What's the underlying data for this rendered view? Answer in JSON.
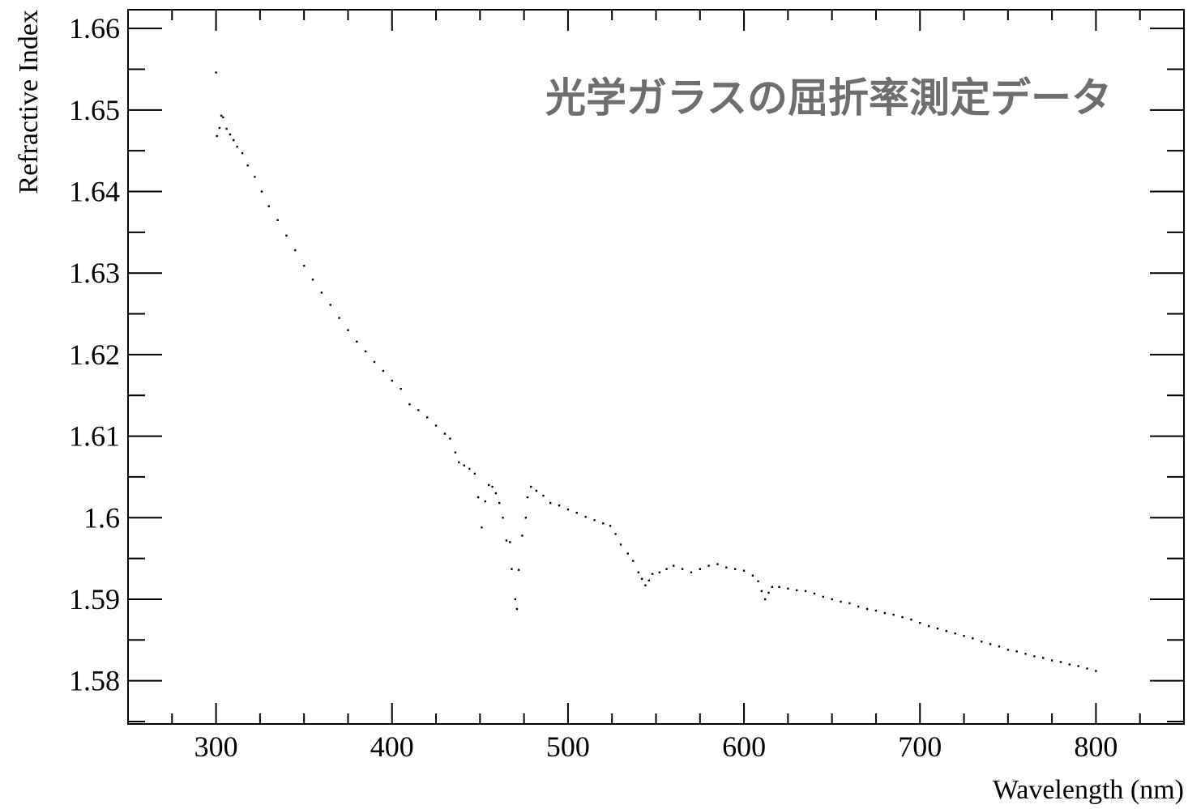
{
  "chart_data": {
    "type": "scatter",
    "title": "光学ガラスの屈折率測定データ",
    "xlabel": "Wavelength (nm)",
    "ylabel": "Refractive Index",
    "xlim": [
      250,
      850
    ],
    "ylim": [
      1.5747,
      1.6623
    ],
    "x_ticks": [
      300,
      400,
      500,
      600,
      700,
      800
    ],
    "x_tick_labels": [
      "300",
      "400",
      "500",
      "600",
      "700",
      "800"
    ],
    "y_ticks": [
      1.58,
      1.59,
      1.6,
      1.61,
      1.62,
      1.63,
      1.64,
      1.65,
      1.66
    ],
    "y_tick_labels": [
      "1.58",
      "1.59",
      "1.6",
      "1.61",
      "1.62",
      "1.63",
      "1.64",
      "1.65",
      "1.66"
    ],
    "grid": false,
    "marker": "small black dots",
    "series": [
      {
        "points": [
          [
            300,
            1.6546
          ],
          [
            300.5,
            1.6468
          ],
          [
            302,
            1.6478
          ],
          [
            303,
            1.6493
          ],
          [
            304,
            1.6491
          ],
          [
            306,
            1.6477
          ],
          [
            308,
            1.647
          ],
          [
            310,
            1.6463
          ],
          [
            312,
            1.6455
          ],
          [
            315,
            1.6447
          ],
          [
            318,
            1.6432
          ],
          [
            322,
            1.6418
          ],
          [
            326,
            1.64
          ],
          [
            330,
            1.6382
          ],
          [
            335,
            1.6365
          ],
          [
            340,
            1.6346
          ],
          [
            345,
            1.6328
          ],
          [
            350,
            1.6309
          ],
          [
            355,
            1.6292
          ],
          [
            360,
            1.6276
          ],
          [
            365,
            1.6261
          ],
          [
            370,
            1.6245
          ],
          [
            375,
            1.623
          ],
          [
            380,
            1.6216
          ],
          [
            385,
            1.6204
          ],
          [
            390,
            1.6191
          ],
          [
            395,
            1.618
          ],
          [
            400,
            1.6168
          ],
          [
            405,
            1.6158
          ],
          [
            410,
            1.6139
          ],
          [
            415,
            1.6132
          ],
          [
            420,
            1.6123
          ],
          [
            425,
            1.6113
          ],
          [
            430,
            1.6103
          ],
          [
            433,
            1.6097
          ],
          [
            436,
            1.608
          ],
          [
            438,
            1.6068
          ],
          [
            441,
            1.6064
          ],
          [
            444,
            1.606
          ],
          [
            447,
            1.6054
          ],
          [
            449,
            1.6025
          ],
          [
            451,
            1.5988
          ],
          [
            453,
            1.602
          ],
          [
            455,
            1.604
          ],
          [
            457,
            1.6038
          ],
          [
            459,
            1.603
          ],
          [
            461,
            1.6018
          ],
          [
            463,
            1.6
          ],
          [
            465,
            1.5972
          ],
          [
            467,
            1.597
          ],
          [
            468,
            1.5937
          ],
          [
            470,
            1.59
          ],
          [
            471,
            1.5888
          ],
          [
            472,
            1.5936
          ],
          [
            474,
            1.5978
          ],
          [
            476,
            1.6
          ],
          [
            477,
            1.6025
          ],
          [
            479,
            1.6038
          ],
          [
            482,
            1.6033
          ],
          [
            486,
            1.6027
          ],
          [
            490,
            1.6018
          ],
          [
            495,
            1.6015
          ],
          [
            500,
            1.601
          ],
          [
            505,
            1.6006
          ],
          [
            510,
            1.6001
          ],
          [
            515,
            1.5997
          ],
          [
            520,
            1.5993
          ],
          [
            524,
            1.599
          ],
          [
            527,
            1.598
          ],
          [
            530,
            1.5967
          ],
          [
            534,
            1.5956
          ],
          [
            537,
            1.5947
          ],
          [
            540,
            1.5933
          ],
          [
            542,
            1.5925
          ],
          [
            544,
            1.5917
          ],
          [
            546,
            1.5923
          ],
          [
            548,
            1.5931
          ],
          [
            552,
            1.5933
          ],
          [
            556,
            1.5937
          ],
          [
            560,
            1.5941
          ],
          [
            565,
            1.5937
          ],
          [
            570,
            1.5933
          ],
          [
            575,
            1.5937
          ],
          [
            580,
            1.5941
          ],
          [
            585,
            1.5943
          ],
          [
            590,
            1.5939
          ],
          [
            595,
            1.5937
          ],
          [
            600,
            1.5935
          ],
          [
            605,
            1.5929
          ],
          [
            608,
            1.5922
          ],
          [
            610,
            1.591
          ],
          [
            612,
            1.59
          ],
          [
            614,
            1.5908
          ],
          [
            616,
            1.5915
          ],
          [
            620,
            1.5915
          ],
          [
            625,
            1.5913
          ],
          [
            630,
            1.5911
          ],
          [
            635,
            1.591
          ],
          [
            640,
            1.5907
          ],
          [
            645,
            1.5903
          ],
          [
            650,
            1.59
          ],
          [
            655,
            1.5897
          ],
          [
            660,
            1.5895
          ],
          [
            665,
            1.5891
          ],
          [
            670,
            1.5888
          ],
          [
            675,
            1.5886
          ],
          [
            680,
            1.5883
          ],
          [
            685,
            1.5881
          ],
          [
            690,
            1.5878
          ],
          [
            695,
            1.5875
          ],
          [
            700,
            1.5871
          ],
          [
            705,
            1.5867
          ],
          [
            710,
            1.5864
          ],
          [
            715,
            1.5861
          ],
          [
            720,
            1.5858
          ],
          [
            725,
            1.5855
          ],
          [
            730,
            1.5852
          ],
          [
            735,
            1.5848
          ],
          [
            740,
            1.5845
          ],
          [
            745,
            1.5842
          ],
          [
            750,
            1.5838
          ],
          [
            755,
            1.5836
          ],
          [
            760,
            1.5833
          ],
          [
            765,
            1.583
          ],
          [
            770,
            1.5828
          ],
          [
            775,
            1.5825
          ],
          [
            780,
            1.5823
          ],
          [
            785,
            1.582
          ],
          [
            790,
            1.5818
          ],
          [
            795,
            1.5815
          ],
          [
            800,
            1.5812
          ]
        ]
      }
    ]
  }
}
